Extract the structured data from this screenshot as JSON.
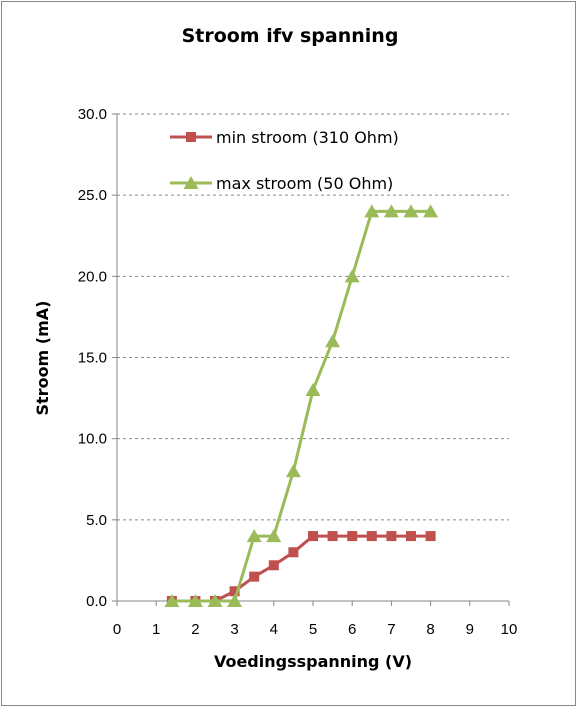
{
  "chart_data": {
    "type": "scatter",
    "title": "Stroom ifv spanning",
    "xlabel": "Voedingsspanning (V)",
    "ylabel": "Stroom (mA)",
    "xlim": [
      0,
      10
    ],
    "ylim": [
      0,
      30
    ],
    "x_ticks": [
      "0",
      "1",
      "2",
      "3",
      "4",
      "5",
      "6",
      "7",
      "8",
      "9",
      "10"
    ],
    "y_ticks": [
      "0.0",
      "5.0",
      "10.0",
      "15.0",
      "20.0",
      "25.0",
      "30.0"
    ],
    "grid": "horizontal-dashed",
    "legend_position": "top-left-inside",
    "series": [
      {
        "name": "min stroom (310 Ohm)",
        "color": "#c0504d",
        "marker": "square",
        "points": [
          [
            1.4,
            0
          ],
          [
            2,
            0
          ],
          [
            2.5,
            0
          ],
          [
            3,
            0.6
          ],
          [
            3.5,
            1.5
          ],
          [
            4,
            2.2
          ],
          [
            4.5,
            3
          ],
          [
            5,
            4
          ],
          [
            5.5,
            4
          ],
          [
            6,
            4
          ],
          [
            6.5,
            4
          ],
          [
            7,
            4
          ],
          [
            7.5,
            4
          ],
          [
            8,
            4
          ]
        ]
      },
      {
        "name": "max stroom (50 Ohm)",
        "color": "#9bbb59",
        "marker": "triangle",
        "points": [
          [
            1.4,
            0
          ],
          [
            2,
            0
          ],
          [
            2.5,
            0
          ],
          [
            3,
            0
          ],
          [
            3.5,
            4
          ],
          [
            4,
            4
          ],
          [
            4.5,
            8
          ],
          [
            5,
            13
          ],
          [
            5.5,
            16
          ],
          [
            6,
            20
          ],
          [
            6.5,
            24
          ],
          [
            7,
            24
          ],
          [
            7.5,
            24
          ],
          [
            8,
            24
          ]
        ]
      }
    ]
  }
}
